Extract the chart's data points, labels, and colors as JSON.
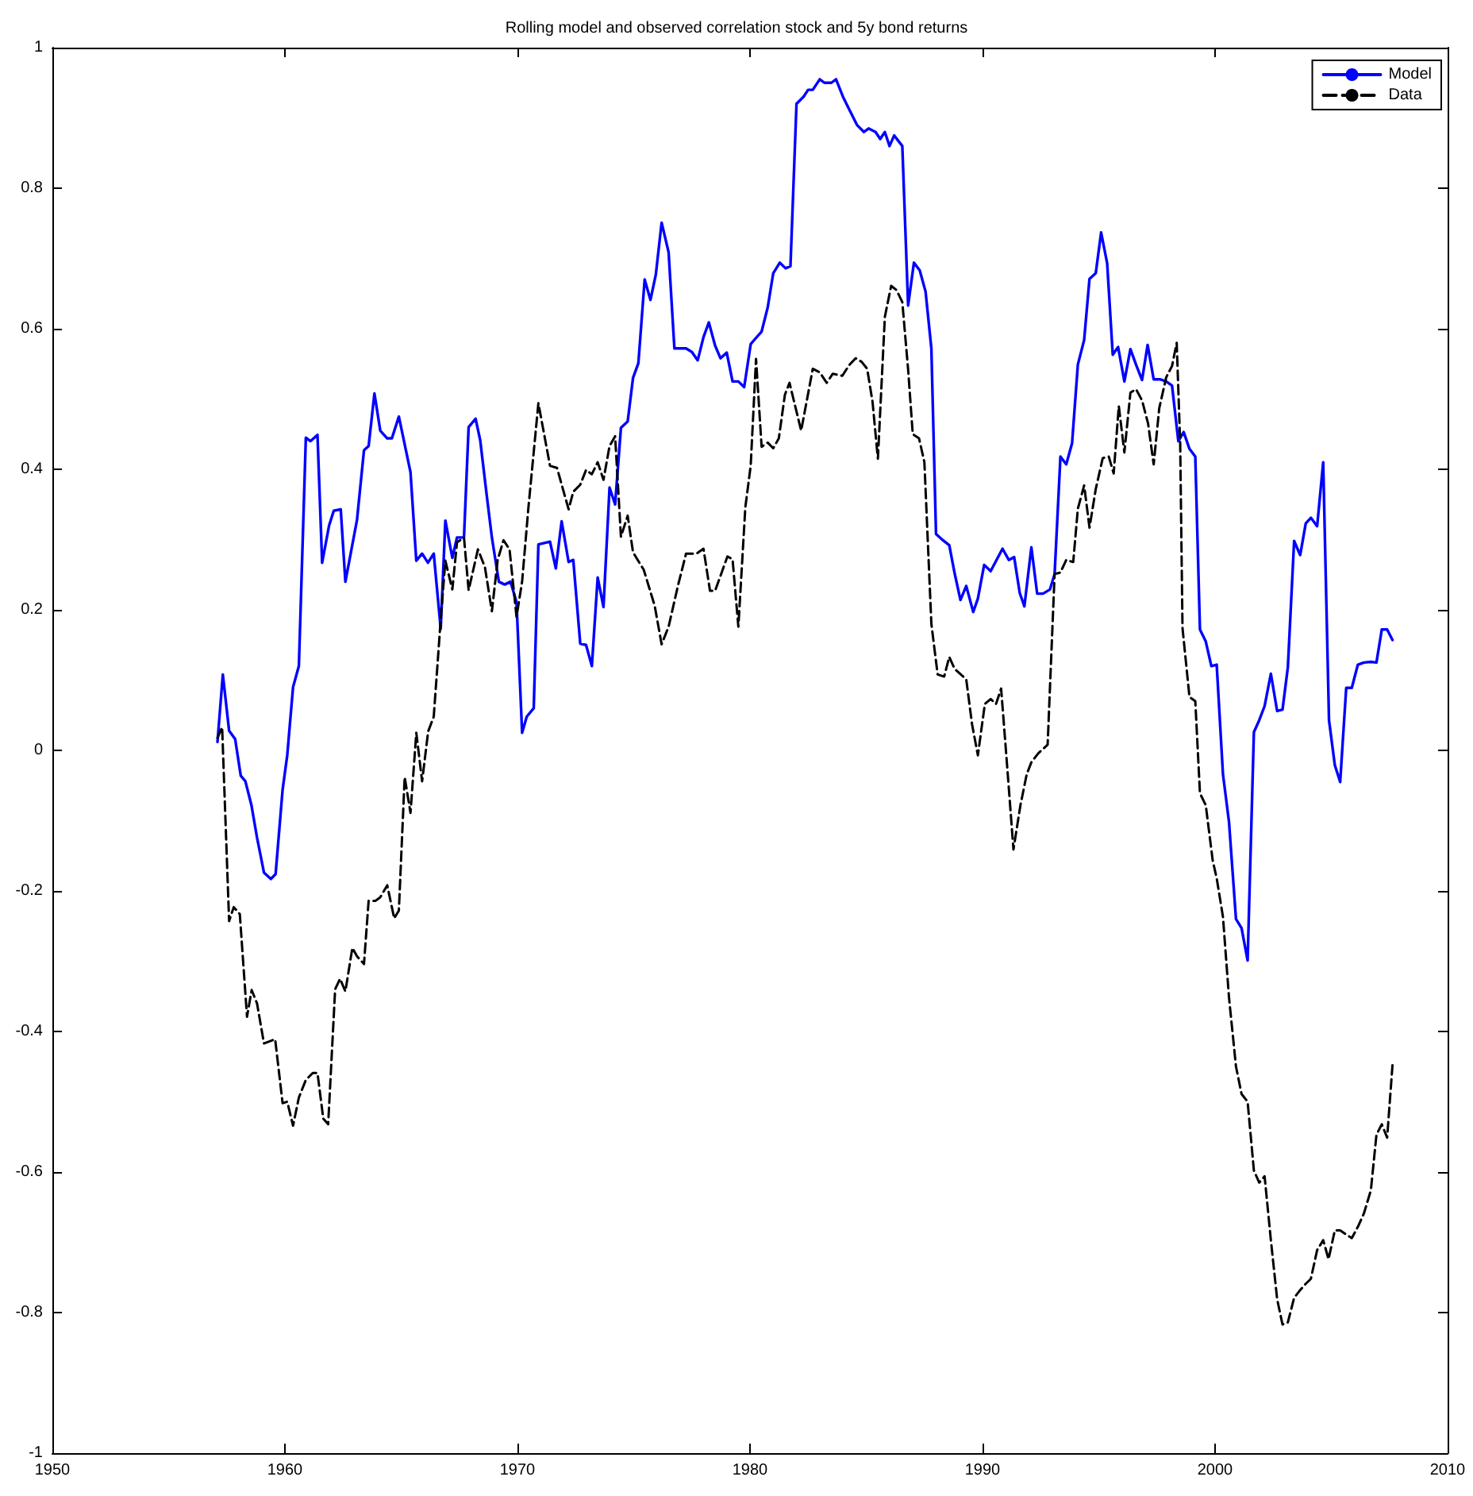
{
  "chart_data": {
    "type": "line",
    "title": "Rolling model and observed correlation stock and 5y bond returns",
    "xlim": [
      1950,
      2010
    ],
    "xticks": [
      1950,
      1960,
      1970,
      1980,
      1990,
      2000,
      2010
    ],
    "ylim": [
      -1,
      1
    ],
    "yticks": [
      -1,
      -0.8,
      -0.6,
      -0.4,
      -0.2,
      0,
      0.2,
      0.4,
      0.6,
      0.8,
      1
    ],
    "grid": false,
    "legend": "top right",
    "series": [
      {
        "name": "Model",
        "color": "#0000ff",
        "line_style": "solid",
        "x": [
          1957.1,
          1957.33,
          1957.6,
          1957.86,
          1958.1,
          1958.3,
          1958.56,
          1958.8,
          1959.1,
          1959.4,
          1959.6,
          1959.9,
          1960.1,
          1960.35,
          1960.6,
          1960.9,
          1961.1,
          1961.4,
          1961.6,
          1961.9,
          1962.1,
          1962.4,
          1962.6,
          1963.1,
          1963.4,
          1963.6,
          1963.85,
          1964.1,
          1964.4,
          1964.6,
          1964.9,
          1965.4,
          1965.65,
          1965.9,
          1966.15,
          1966.4,
          1966.7,
          1966.9,
          1967.2,
          1967.4,
          1967.7,
          1967.9,
          1968.2,
          1968.4,
          1968.7,
          1968.9,
          1969.2,
          1969.45,
          1969.7,
          1969.96,
          1970.2,
          1970.4,
          1970.7,
          1970.9,
          1971.4,
          1971.65,
          1971.9,
          1972.2,
          1972.4,
          1972.7,
          1972.95,
          1973.2,
          1973.45,
          1973.7,
          1973.96,
          1974.2,
          1974.45,
          1974.74,
          1974.97,
          1975.2,
          1975.47,
          1975.72,
          1975.95,
          1976.2,
          1976.5,
          1976.75,
          1977.25,
          1977.5,
          1977.75,
          1978.0,
          1978.23,
          1978.5,
          1978.73,
          1979.0,
          1979.25,
          1979.5,
          1979.75,
          1980.03,
          1980.26,
          1980.5,
          1980.76,
          1981.0,
          1981.28,
          1981.53,
          1981.74,
          1982.0,
          1982.3,
          1982.5,
          1982.7,
          1983.0,
          1983.2,
          1983.5,
          1983.7,
          1984.0,
          1984.3,
          1984.6,
          1984.9,
          1985.1,
          1985.4,
          1985.6,
          1985.8,
          1986.0,
          1986.2,
          1986.55,
          1986.8,
          1987.05,
          1987.3,
          1987.55,
          1987.8,
          1988.0,
          1988.3,
          1988.57,
          1988.8,
          1989.05,
          1989.3,
          1989.6,
          1989.8,
          1990.07,
          1990.35,
          1990.86,
          1991.13,
          1991.36,
          1991.6,
          1991.8,
          1992.1,
          1992.35,
          1992.6,
          1992.9,
          1993.1,
          1993.35,
          1993.6,
          1993.85,
          1994.1,
          1994.37,
          1994.6,
          1994.87,
          1995.1,
          1995.36,
          1995.6,
          1995.83,
          1996.1,
          1996.36,
          1996.6,
          1996.86,
          1997.1,
          1997.36,
          1997.63,
          1997.9,
          1998.15,
          1998.42,
          1998.65,
          1998.9,
          1999.15,
          1999.35,
          1999.6,
          1999.84,
          2000.07,
          2000.34,
          2000.6,
          2000.9,
          2001.14,
          2001.4,
          2001.67,
          2001.9,
          2002.13,
          2002.4,
          2002.67,
          2002.9,
          2003.13,
          2003.4,
          2003.66,
          2003.9,
          2004.12,
          2004.39,
          2004.65,
          2004.9,
          2005.15,
          2005.38,
          2005.64,
          2005.88,
          2006.14,
          2006.4,
          2006.7,
          2006.94,
          2007.17,
          2007.4,
          2007.63
        ],
        "values": [
          0.012,
          0.108,
          0.028,
          0.016,
          -0.036,
          -0.044,
          -0.078,
          -0.124,
          -0.174,
          -0.183,
          -0.176,
          -0.056,
          -0.007,
          0.09,
          0.12,
          0.445,
          0.44,
          0.449,
          0.267,
          0.32,
          0.341,
          0.343,
          0.24,
          0.328,
          0.427,
          0.433,
          0.508,
          0.455,
          0.444,
          0.444,
          0.475,
          0.396,
          0.27,
          0.28,
          0.267,
          0.28,
          0.173,
          0.327,
          0.274,
          0.303,
          0.303,
          0.46,
          0.472,
          0.441,
          0.357,
          0.303,
          0.24,
          0.236,
          0.24,
          0.211,
          0.025,
          0.048,
          0.06,
          0.293,
          0.297,
          0.259,
          0.326,
          0.268,
          0.271,
          0.152,
          0.15,
          0.12,
          0.246,
          0.204,
          0.374,
          0.35,
          0.459,
          0.468,
          0.53,
          0.551,
          0.67,
          0.641,
          0.677,
          0.751,
          0.709,
          0.572,
          0.572,
          0.567,
          0.555,
          0.588,
          0.609,
          0.576,
          0.558,
          0.566,
          0.525,
          0.525,
          0.517,
          0.578,
          0.587,
          0.596,
          0.63,
          0.679,
          0.694,
          0.686,
          0.689,
          0.92,
          0.93,
          0.94,
          0.94,
          0.955,
          0.95,
          0.95,
          0.955,
          0.93,
          0.91,
          0.89,
          0.88,
          0.885,
          0.88,
          0.87,
          0.88,
          0.86,
          0.875,
          0.86,
          0.633,
          0.694,
          0.683,
          0.653,
          0.572,
          0.308,
          0.299,
          0.292,
          0.252,
          0.214,
          0.234,
          0.197,
          0.216,
          0.264,
          0.255,
          0.287,
          0.271,
          0.275,
          0.224,
          0.205,
          0.289,
          0.223,
          0.223,
          0.229,
          0.251,
          0.418,
          0.407,
          0.437,
          0.549,
          0.584,
          0.671,
          0.679,
          0.737,
          0.693,
          0.563,
          0.574,
          0.525,
          0.571,
          0.549,
          0.527,
          0.577,
          0.528,
          0.528,
          0.525,
          0.519,
          0.44,
          0.453,
          0.429,
          0.418,
          0.172,
          0.155,
          0.12,
          0.122,
          -0.034,
          -0.102,
          -0.24,
          -0.253,
          -0.299,
          0.026,
          0.043,
          0.063,
          0.109,
          0.056,
          0.058,
          0.118,
          0.298,
          0.278,
          0.323,
          0.331,
          0.319,
          0.41,
          0.043,
          -0.021,
          -0.045,
          0.089,
          0.089,
          0.122,
          0.125,
          0.126,
          0.125,
          0.172,
          0.172,
          0.157
        ]
      },
      {
        "name": "Data",
        "color": "#000000",
        "line_style": "dashed",
        "x": [
          1957.1,
          1957.3,
          1957.6,
          1957.8,
          1958.06,
          1958.37,
          1958.57,
          1958.8,
          1959.1,
          1959.58,
          1959.9,
          1960.1,
          1960.35,
          1960.6,
          1960.9,
          1961.2,
          1961.4,
          1961.65,
          1961.86,
          1962.16,
          1962.37,
          1962.6,
          1962.9,
          1963.1,
          1963.4,
          1963.6,
          1963.9,
          1964.1,
          1964.4,
          1964.7,
          1964.9,
          1965.15,
          1965.4,
          1965.65,
          1965.9,
          1966.16,
          1966.4,
          1966.7,
          1966.9,
          1967.2,
          1967.4,
          1967.7,
          1967.9,
          1968.3,
          1968.6,
          1968.9,
          1969.15,
          1969.4,
          1969.66,
          1969.96,
          1970.2,
          1970.47,
          1970.9,
          1971.4,
          1971.7,
          1972.2,
          1972.4,
          1972.7,
          1972.95,
          1973.2,
          1973.45,
          1973.7,
          1973.96,
          1974.2,
          1974.45,
          1974.74,
          1974.97,
          1975.43,
          1975.9,
          1976.2,
          1976.5,
          1976.9,
          1977.25,
          1977.7,
          1978.0,
          1978.28,
          1978.5,
          1979.03,
          1979.25,
          1979.5,
          1979.8,
          1980.03,
          1980.26,
          1980.5,
          1980.76,
          1981.0,
          1981.24,
          1981.5,
          1981.7,
          1982.2,
          1982.7,
          1983.0,
          1983.3,
          1983.56,
          1983.97,
          1984.26,
          1984.54,
          1984.8,
          1985.04,
          1985.27,
          1985.5,
          1985.8,
          1986.07,
          1986.3,
          1986.55,
          1986.8,
          1987.0,
          1987.27,
          1987.5,
          1987.8,
          1988.07,
          1988.35,
          1988.57,
          1988.8,
          1989.3,
          1989.55,
          1989.8,
          1990.1,
          1990.35,
          1990.58,
          1990.8,
          1991.06,
          1991.33,
          1991.63,
          1991.9,
          1992.1,
          1992.4,
          1992.8,
          1993.1,
          1993.35,
          1993.6,
          1993.9,
          1994.1,
          1994.37,
          1994.6,
          1994.87,
          1995.17,
          1995.43,
          1995.64,
          1995.86,
          1996.1,
          1996.36,
          1996.6,
          1996.86,
          1997.12,
          1997.36,
          1997.6,
          1997.9,
          1998.15,
          1998.35,
          1998.5,
          1998.6,
          1998.9,
          1999.15,
          1999.35,
          1999.6,
          1999.9,
          2000.07,
          2000.34,
          2000.6,
          2000.9,
          2001.14,
          2001.4,
          2001.67,
          2001.9,
          2002.13,
          2002.4,
          2002.67,
          2002.9,
          2003.13,
          2003.4,
          2003.66,
          2003.9,
          2004.12,
          2004.39,
          2004.65,
          2004.88,
          2005.15,
          2005.38,
          2005.64,
          2005.88,
          2006.14,
          2006.4,
          2006.7,
          2006.94,
          2007.17,
          2007.4,
          2007.63
        ],
        "values": [
          0.018,
          0.033,
          -0.243,
          -0.223,
          -0.233,
          -0.379,
          -0.341,
          -0.36,
          -0.417,
          -0.411,
          -0.502,
          -0.5,
          -0.534,
          -0.494,
          -0.469,
          -0.459,
          -0.459,
          -0.524,
          -0.532,
          -0.34,
          -0.325,
          -0.343,
          -0.281,
          -0.293,
          -0.304,
          -0.214,
          -0.214,
          -0.209,
          -0.192,
          -0.239,
          -0.228,
          -0.038,
          -0.089,
          0.025,
          -0.044,
          0.027,
          0.048,
          0.186,
          0.27,
          0.229,
          0.296,
          0.303,
          0.228,
          0.286,
          0.261,
          0.198,
          0.271,
          0.299,
          0.286,
          0.19,
          0.24,
          0.345,
          0.494,
          0.405,
          0.402,
          0.343,
          0.368,
          0.378,
          0.399,
          0.393,
          0.41,
          0.385,
          0.433,
          0.447,
          0.304,
          0.334,
          0.282,
          0.257,
          0.206,
          0.151,
          0.176,
          0.234,
          0.28,
          0.28,
          0.287,
          0.227,
          0.227,
          0.276,
          0.272,
          0.176,
          0.346,
          0.405,
          0.557,
          0.432,
          0.438,
          0.43,
          0.444,
          0.506,
          0.523,
          0.455,
          0.543,
          0.538,
          0.523,
          0.536,
          0.533,
          0.548,
          0.558,
          0.553,
          0.543,
          0.496,
          0.415,
          0.617,
          0.661,
          0.655,
          0.638,
          0.542,
          0.45,
          0.444,
          0.41,
          0.18,
          0.108,
          0.105,
          0.133,
          0.116,
          0.101,
          0.037,
          -0.007,
          0.066,
          0.073,
          0.066,
          0.088,
          -0.023,
          -0.141,
          -0.078,
          -0.034,
          -0.017,
          -0.004,
          0.008,
          0.251,
          0.253,
          0.271,
          0.268,
          0.344,
          0.377,
          0.317,
          0.372,
          0.416,
          0.418,
          0.394,
          0.49,
          0.424,
          0.509,
          0.514,
          0.498,
          0.465,
          0.407,
          0.487,
          0.531,
          0.547,
          0.58,
          0.437,
          0.174,
          0.076,
          0.07,
          -0.061,
          -0.078,
          -0.157,
          -0.182,
          -0.237,
          -0.352,
          -0.45,
          -0.489,
          -0.5,
          -0.598,
          -0.615,
          -0.606,
          -0.697,
          -0.781,
          -0.817,
          -0.814,
          -0.779,
          -0.768,
          -0.759,
          -0.752,
          -0.711,
          -0.697,
          -0.724,
          -0.683,
          -0.683,
          -0.689,
          -0.694,
          -0.678,
          -0.659,
          -0.626,
          -0.547,
          -0.532,
          -0.551,
          -0.448
        ]
      }
    ]
  }
}
